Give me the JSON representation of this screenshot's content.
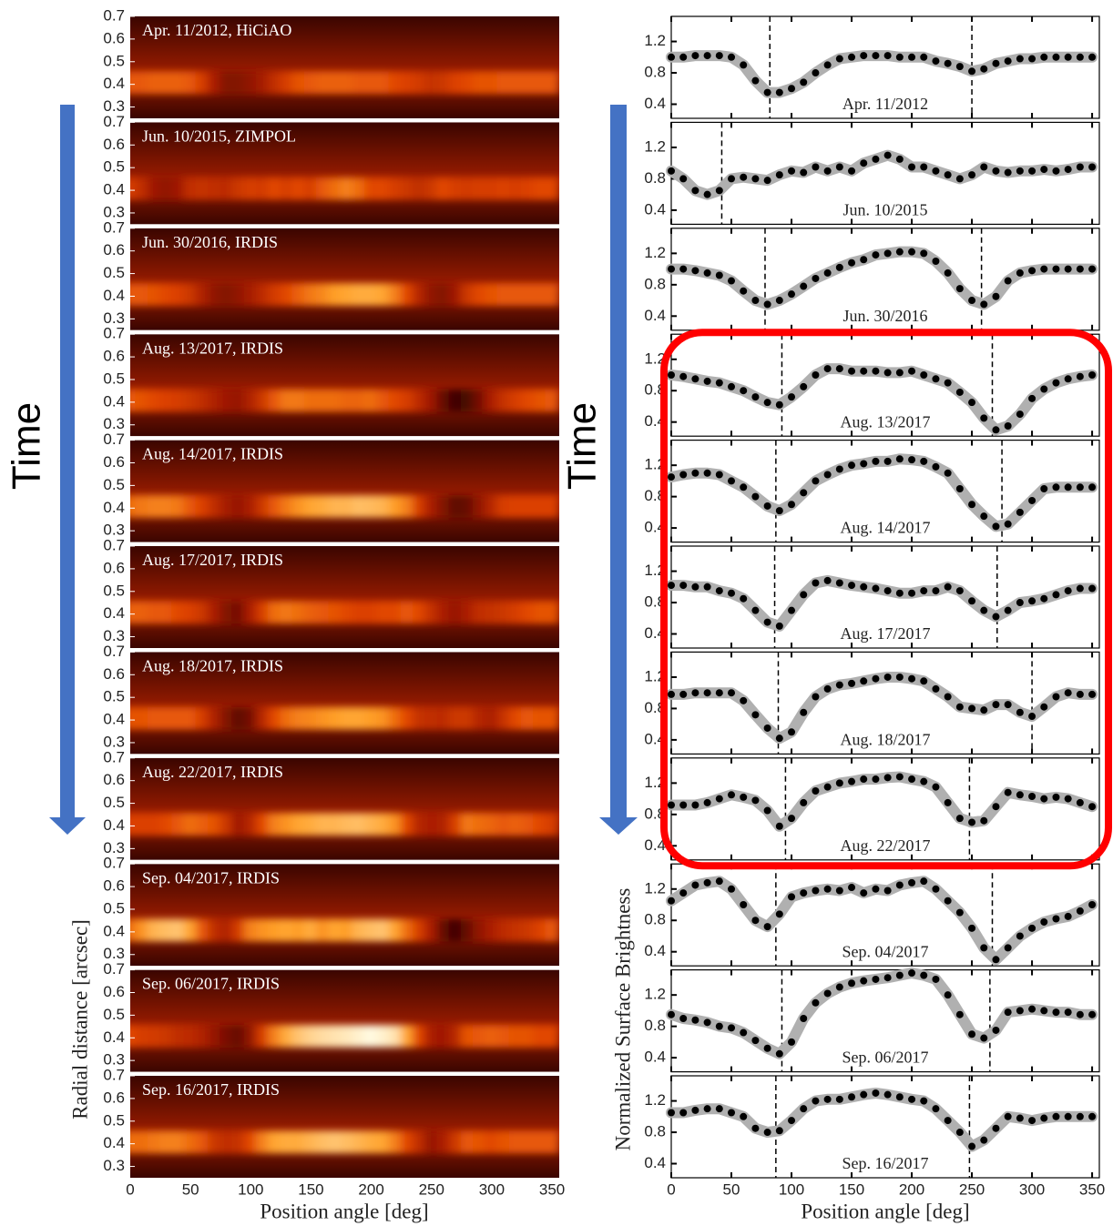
{
  "chart_data": [
    {
      "type": "heatmap",
      "xlabel": "Position angle [deg]",
      "ylabel": "Radial distance [arcsec]",
      "annotation": "Time",
      "xlim": [
        0,
        356
      ],
      "xticks": [
        0,
        50,
        100,
        150,
        200,
        250,
        300,
        350
      ],
      "ylim": [
        0.25,
        0.7
      ],
      "yticks": [
        0.3,
        0.4,
        0.5,
        0.6,
        0.7
      ],
      "panels": [
        {
          "label": "Apr. 11/2012, HiCiAO"
        },
        {
          "label": "Jun. 10/2015, ZIMPOL"
        },
        {
          "label": "Jun. 30/2016, IRDIS"
        },
        {
          "label": "Aug. 13/2017, IRDIS"
        },
        {
          "label": "Aug. 14/2017, IRDIS"
        },
        {
          "label": "Aug. 17/2017, IRDIS"
        },
        {
          "label": "Aug. 18/2017, IRDIS"
        },
        {
          "label": "Aug. 22/2017, IRDIS"
        },
        {
          "label": "Sep. 04/2017, IRDIS"
        },
        {
          "label": "Sep. 06/2017, IRDIS"
        },
        {
          "label": "Sep. 16/2017, IRDIS"
        }
      ]
    },
    {
      "type": "line",
      "xlabel": "Position angle [deg]",
      "ylabel": "Normalized Surface Brightness",
      "annotation": "Time",
      "xlim": [
        0,
        356
      ],
      "xticks": [
        0,
        50,
        100,
        150,
        200,
        250,
        300,
        350
      ],
      "ylim": [
        0.22,
        1.52
      ],
      "yticks": [
        0.4,
        0.8,
        1.2
      ],
      "color": "#000000",
      "band_color": "#b0b0b0",
      "highlight_color": "#ff0000",
      "x": [
        0,
        10,
        20,
        30,
        40,
        50,
        60,
        70,
        80,
        90,
        100,
        110,
        120,
        130,
        140,
        150,
        160,
        170,
        180,
        190,
        200,
        210,
        220,
        230,
        240,
        250,
        260,
        270,
        280,
        290,
        300,
        310,
        320,
        330,
        340,
        350
      ],
      "series": [
        {
          "name": "Apr. 11/2012",
          "dips": [
            82,
            250
          ],
          "values": [
            1.0,
            1.0,
            1.02,
            1.02,
            1.02,
            1.0,
            0.9,
            0.7,
            0.55,
            0.55,
            0.6,
            0.68,
            0.8,
            0.9,
            0.98,
            1.0,
            1.02,
            1.02,
            1.02,
            1.0,
            1.0,
            1.0,
            0.95,
            0.92,
            0.88,
            0.82,
            0.85,
            0.92,
            0.95,
            0.98,
            0.98,
            1.0,
            1.0,
            1.0,
            1.0,
            1.0
          ]
        },
        {
          "name": "Jun. 10/2015",
          "dips": [
            42
          ],
          "values": [
            0.9,
            0.8,
            0.65,
            0.6,
            0.65,
            0.8,
            0.82,
            0.8,
            0.78,
            0.85,
            0.9,
            0.88,
            0.95,
            0.9,
            0.95,
            0.9,
            1.0,
            1.05,
            1.1,
            1.05,
            0.95,
            0.95,
            0.9,
            0.85,
            0.8,
            0.85,
            0.95,
            0.9,
            0.88,
            0.9,
            0.9,
            0.92,
            0.9,
            0.92,
            0.95,
            0.95
          ]
        },
        {
          "name": "Jun. 30/2016",
          "dips": [
            78,
            258
          ],
          "values": [
            1.0,
            1.0,
            0.98,
            0.95,
            0.92,
            0.85,
            0.72,
            0.6,
            0.55,
            0.6,
            0.68,
            0.78,
            0.88,
            0.95,
            1.02,
            1.08,
            1.12,
            1.18,
            1.2,
            1.22,
            1.22,
            1.2,
            1.1,
            0.95,
            0.75,
            0.6,
            0.55,
            0.65,
            0.85,
            0.95,
            0.98,
            1.0,
            1.0,
            1.0,
            1.0,
            1.0
          ]
        },
        {
          "name": "Aug. 13/2017",
          "dips": [
            92,
            267
          ],
          "values": [
            1.0,
            0.98,
            0.95,
            0.92,
            0.9,
            0.85,
            0.8,
            0.72,
            0.65,
            0.62,
            0.72,
            0.85,
            1.0,
            1.08,
            1.08,
            1.05,
            1.05,
            1.05,
            1.03,
            1.03,
            1.05,
            1.0,
            0.95,
            0.9,
            0.78,
            0.65,
            0.45,
            0.3,
            0.35,
            0.5,
            0.7,
            0.82,
            0.9,
            0.95,
            0.98,
            1.0
          ]
        },
        {
          "name": "Aug. 14/2017",
          "dips": [
            87,
            275
          ],
          "values": [
            1.05,
            1.08,
            1.1,
            1.1,
            1.08,
            1.0,
            0.92,
            0.8,
            0.68,
            0.62,
            0.7,
            0.85,
            1.0,
            1.08,
            1.15,
            1.2,
            1.22,
            1.25,
            1.25,
            1.28,
            1.27,
            1.25,
            1.18,
            1.1,
            0.9,
            0.7,
            0.55,
            0.42,
            0.45,
            0.6,
            0.75,
            0.9,
            0.92,
            0.92,
            0.92,
            0.92
          ]
        },
        {
          "name": "Aug. 17/2017",
          "dips": [
            86,
            271
          ],
          "values": [
            1.02,
            1.02,
            1.0,
            1.0,
            0.95,
            0.92,
            0.85,
            0.7,
            0.55,
            0.5,
            0.7,
            0.9,
            1.05,
            1.08,
            1.05,
            1.02,
            1.0,
            0.98,
            0.95,
            0.92,
            0.92,
            0.95,
            0.95,
            1.0,
            0.95,
            0.82,
            0.7,
            0.62,
            0.7,
            0.8,
            0.82,
            0.85,
            0.9,
            0.95,
            0.98,
            0.98
          ]
        },
        {
          "name": "Aug. 18/2017",
          "dips": [
            89,
            300
          ],
          "values": [
            0.98,
            0.98,
            1.0,
            1.0,
            1.0,
            1.0,
            0.9,
            0.72,
            0.55,
            0.42,
            0.5,
            0.75,
            0.95,
            1.05,
            1.1,
            1.12,
            1.15,
            1.18,
            1.2,
            1.2,
            1.18,
            1.15,
            1.05,
            0.95,
            0.82,
            0.8,
            0.78,
            0.85,
            0.85,
            0.75,
            0.7,
            0.82,
            0.95,
            1.0,
            0.98,
            0.98
          ]
        },
        {
          "name": "Aug. 22/2017",
          "dips": [
            95,
            248
          ],
          "values": [
            0.92,
            0.92,
            0.92,
            0.95,
            1.0,
            1.05,
            1.02,
            0.98,
            0.85,
            0.65,
            0.75,
            0.95,
            1.1,
            1.15,
            1.2,
            1.22,
            1.25,
            1.25,
            1.27,
            1.28,
            1.25,
            1.22,
            1.15,
            0.95,
            0.75,
            0.7,
            0.72,
            0.9,
            1.08,
            1.05,
            1.03,
            1.0,
            1.02,
            1.0,
            0.95,
            0.9
          ]
        },
        {
          "name": "Sep. 04/2017",
          "dips": [
            87,
            267
          ],
          "values": [
            1.05,
            1.15,
            1.25,
            1.28,
            1.3,
            1.2,
            1.0,
            0.8,
            0.72,
            0.88,
            1.1,
            1.15,
            1.18,
            1.2,
            1.18,
            1.22,
            1.15,
            1.2,
            1.18,
            1.25,
            1.28,
            1.3,
            1.2,
            1.05,
            0.9,
            0.7,
            0.45,
            0.3,
            0.45,
            0.6,
            0.7,
            0.78,
            0.82,
            0.85,
            0.92,
            1.0
          ]
        },
        {
          "name": "Sep. 06/2017",
          "dips": [
            92,
            265
          ],
          "values": [
            0.95,
            0.9,
            0.88,
            0.85,
            0.8,
            0.78,
            0.72,
            0.62,
            0.52,
            0.45,
            0.6,
            0.9,
            1.1,
            1.22,
            1.3,
            1.35,
            1.38,
            1.4,
            1.42,
            1.45,
            1.48,
            1.45,
            1.4,
            1.2,
            0.95,
            0.7,
            0.65,
            0.75,
            0.98,
            1.0,
            1.02,
            1.0,
            0.98,
            0.98,
            0.95,
            0.95
          ]
        },
        {
          "name": "Sep. 16/2017",
          "dips": [
            87,
            248
          ],
          "values": [
            1.05,
            1.05,
            1.08,
            1.1,
            1.1,
            1.05,
            1.0,
            0.85,
            0.8,
            0.82,
            0.95,
            1.1,
            1.2,
            1.22,
            1.22,
            1.25,
            1.28,
            1.3,
            1.28,
            1.25,
            1.22,
            1.2,
            1.1,
            0.95,
            0.8,
            0.62,
            0.7,
            0.85,
            1.0,
            0.98,
            0.95,
            0.98,
            1.0,
            1.0,
            1.0,
            1.0
          ]
        }
      ]
    }
  ]
}
